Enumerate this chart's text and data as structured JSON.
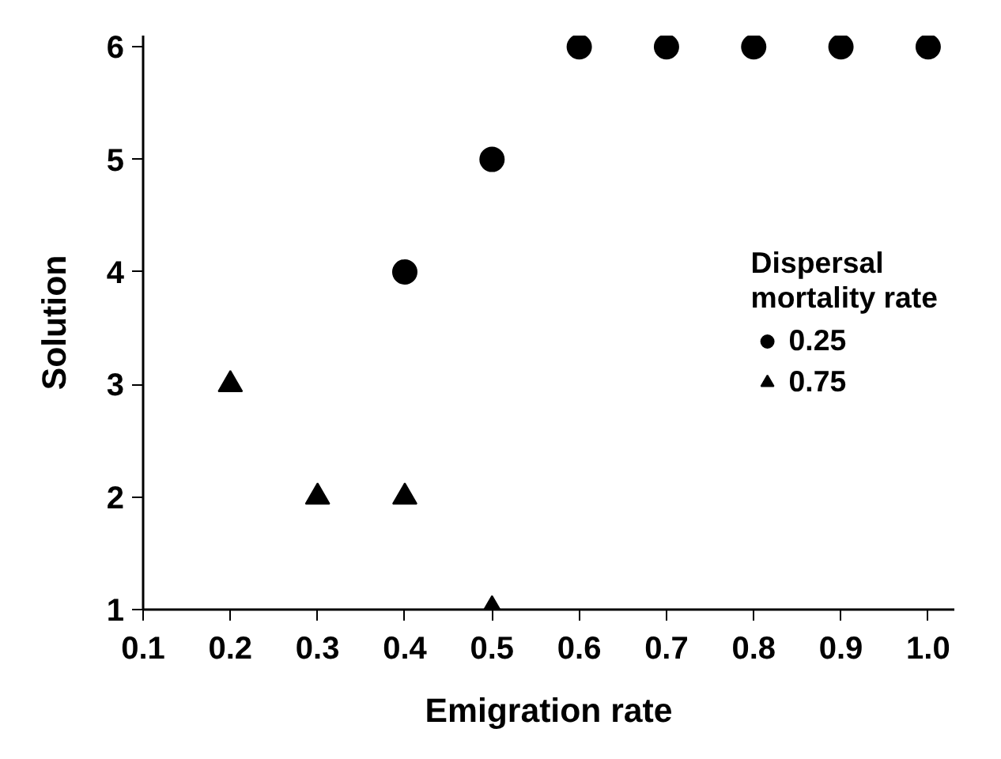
{
  "chart_data": {
    "type": "scatter",
    "xlabel": "Emigration rate",
    "ylabel": "Solution",
    "legend_title": "Dispersal mortality rate",
    "legend": "right",
    "grid": false,
    "xlim": [
      0.1,
      1.03
    ],
    "ylim": [
      1,
      6.1
    ],
    "xticks": [
      {
        "value": 0.1,
        "label": "0.1"
      },
      {
        "value": 0.2,
        "label": "0.2"
      },
      {
        "value": 0.3,
        "label": "0.3"
      },
      {
        "value": 0.4,
        "label": "0.4"
      },
      {
        "value": 0.5,
        "label": "0.5"
      },
      {
        "value": 0.6,
        "label": "0.6"
      },
      {
        "value": 0.7,
        "label": "0.7"
      },
      {
        "value": 0.8,
        "label": "0.8"
      },
      {
        "value": 0.9,
        "label": "0.9"
      },
      {
        "value": 1.0,
        "label": "1.0"
      }
    ],
    "yticks": [
      1,
      2,
      3,
      4,
      5,
      6
    ],
    "series": [
      {
        "name": "0.25",
        "color": "#000000",
        "marker": "circle",
        "x": [
          0.4,
          0.5,
          0.6,
          0.7,
          0.8,
          0.9,
          1.0
        ],
        "values": [
          4,
          5,
          6,
          6,
          6,
          6,
          6
        ]
      },
      {
        "name": "0.75",
        "color": "#000000",
        "marker": "triangle",
        "x": [
          0.2,
          0.3,
          0.4,
          0.5
        ],
        "values": [
          3,
          2,
          2,
          1
        ]
      }
    ]
  }
}
